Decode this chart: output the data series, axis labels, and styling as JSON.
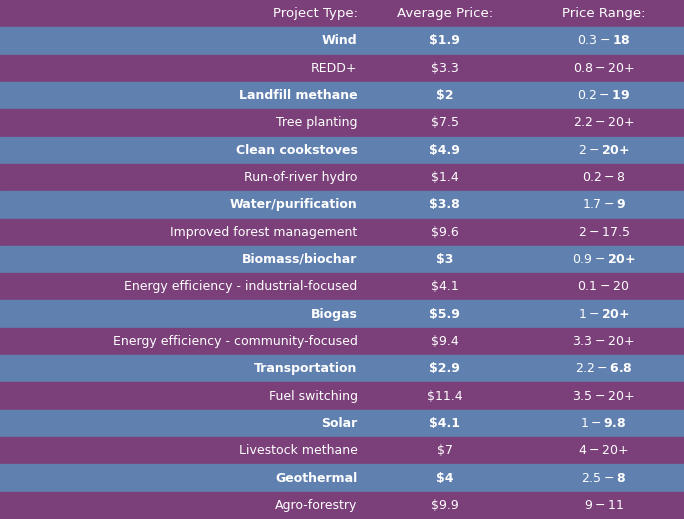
{
  "rows": [
    {
      "project": "Wind",
      "avg_price": "$1.9",
      "price_range": "$0.3 - $18",
      "bold": true
    },
    {
      "project": "REDD+",
      "avg_price": "$3.3",
      "price_range": "$0.8 - $20+",
      "bold": false
    },
    {
      "project": "Landfill methane",
      "avg_price": "$2",
      "price_range": "$0.2 - $19",
      "bold": true
    },
    {
      "project": "Tree planting",
      "avg_price": "$7.5",
      "price_range": "$2.2 - $20+",
      "bold": false
    },
    {
      "project": "Clean cookstoves",
      "avg_price": "$4.9",
      "price_range": "$2 - $20+",
      "bold": true
    },
    {
      "project": "Run-of-river hydro",
      "avg_price": "$1.4",
      "price_range": "$0.2 - $8",
      "bold": false
    },
    {
      "project": "Water/purification",
      "avg_price": "$3.8",
      "price_range": "$1.7 - $9",
      "bold": true
    },
    {
      "project": "Improved forest management",
      "avg_price": "$9.6",
      "price_range": "$2 - $17.5",
      "bold": false
    },
    {
      "project": "Biomass/biochar",
      "avg_price": "$3",
      "price_range": "$0.9 - $20+",
      "bold": true
    },
    {
      "project": "Energy efficiency - industrial-focused",
      "avg_price": "$4.1",
      "price_range": "$0.1 - $20",
      "bold": false
    },
    {
      "project": "Biogas",
      "avg_price": "$5.9",
      "price_range": "$1 - $20+",
      "bold": true
    },
    {
      "project": "Energy efficiency - community-focused",
      "avg_price": "$9.4",
      "price_range": "$3.3 - $20+",
      "bold": false
    },
    {
      "project": "Transportation",
      "avg_price": "$2.9",
      "price_range": "$2.2 - $6.8",
      "bold": true
    },
    {
      "project": "Fuel switching",
      "avg_price": "$11.4",
      "price_range": "$3.5 - $20+",
      "bold": false
    },
    {
      "project": "Solar",
      "avg_price": "$4.1",
      "price_range": "$1 - $9.8",
      "bold": true
    },
    {
      "project": "Livestock methane",
      "avg_price": "$7",
      "price_range": "$4 - $20+",
      "bold": false
    },
    {
      "project": "Geothermal",
      "avg_price": "$4",
      "price_range": "$2.5 - $8",
      "bold": true
    },
    {
      "project": "Agro-forestry",
      "avg_price": "$9.9",
      "price_range": "$9 - $11",
      "bold": false
    }
  ],
  "header": [
    "Project Type:",
    "Average Price:",
    "Price Range:"
  ],
  "color_bold_row": "#6080b0",
  "color_normal_row": "#7b3f7a",
  "color_header_bg": "#7b3f7a",
  "text_color": "#ffffff",
  "fig_bg": "#7b3f7a",
  "font_size": 9.0,
  "header_font_size": 9.5
}
